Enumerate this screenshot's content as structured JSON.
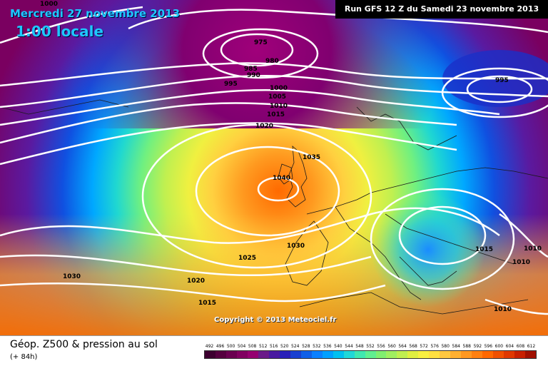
{
  "header": {
    "date": "Mercredi 27 novembre 2013",
    "time": "1:00 locale",
    "run": "Run GFS 12 Z du Samedi 23 novembre 2013"
  },
  "copyright": "Copyright © 2013 Meteociel.fr",
  "footer": {
    "title": "Géop. Z500 & pression au sol",
    "subtitle": "(+ 84h)"
  },
  "legend": {
    "labels": [
      "492",
      "496",
      "500",
      "504",
      "508",
      "512",
      "516",
      "520",
      "524",
      "528",
      "532",
      "536",
      "540",
      "544",
      "548",
      "552",
      "556",
      "560",
      "564",
      "568",
      "572",
      "576",
      "580",
      "584",
      "588",
      "592",
      "596",
      "600",
      "604",
      "608",
      "612"
    ],
    "colors": [
      "#3d0030",
      "#55003f",
      "#6a0050",
      "#800060",
      "#950070",
      "#6a1a88",
      "#4a1aa0",
      "#2a20b8",
      "#1a40d0",
      "#1060e8",
      "#0a80ff",
      "#00a0ff",
      "#00c0f0",
      "#20d8d8",
      "#40e8b0",
      "#60f090",
      "#80f070",
      "#a0f060",
      "#c0f050",
      "#e0f040",
      "#f8f040",
      "#ffe040",
      "#ffc840",
      "#ffb030",
      "#ff9820",
      "#ff8010",
      "#ff6800",
      "#f05000",
      "#e03800",
      "#c82000",
      "#a01000"
    ]
  },
  "isobars": {
    "labels": [
      "1000",
      "975",
      "980",
      "985",
      "990",
      "995",
      "995",
      "1000",
      "1005",
      "1010",
      "1015",
      "1020",
      "1035",
      "1040",
      "1030",
      "1025",
      "1030",
      "1020",
      "1015",
      "1015",
      "1010",
      "1010",
      "1010"
    ]
  }
}
